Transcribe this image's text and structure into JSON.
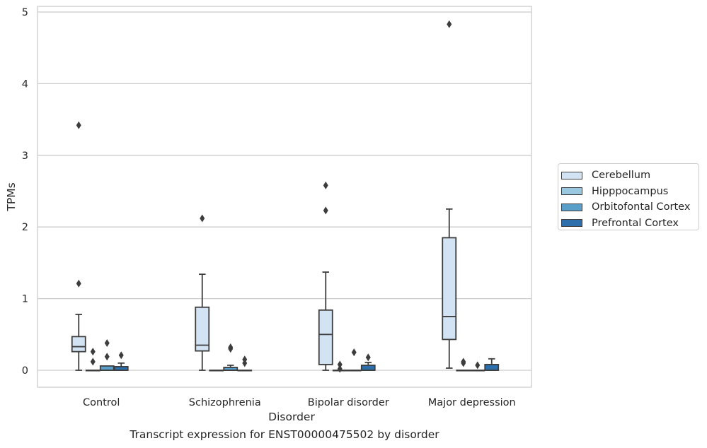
{
  "chart_data": {
    "type": "box",
    "title": "Transcript expression for ENST00000475502 by disorder",
    "xlabel": "Disorder",
    "ylabel": "TPMs",
    "ylim": [
      -0.23,
      5.08
    ],
    "yticks": [
      "0",
      "1",
      "2",
      "3",
      "4",
      "5"
    ],
    "categories": [
      "Control",
      "Schizophrenia",
      "Bipolar disorder",
      "Major depression"
    ],
    "grid": "horizontal",
    "legend_position": "right",
    "series": [
      {
        "name": "Cerebellum",
        "color": "#d2e3f3",
        "boxes": [
          {
            "q1": 0.26,
            "median": 0.33,
            "q3": 0.47,
            "whisker_low": 0.0,
            "whisker_high": 0.78,
            "outliers": [
              3.42,
              1.21
            ]
          },
          {
            "q1": 0.27,
            "median": 0.35,
            "q3": 0.88,
            "whisker_low": 0.0,
            "whisker_high": 1.34,
            "outliers": [
              2.12
            ]
          },
          {
            "q1": 0.08,
            "median": 0.5,
            "q3": 0.84,
            "whisker_low": 0.0,
            "whisker_high": 1.37,
            "outliers": [
              2.58,
              2.23
            ]
          },
          {
            "q1": 0.43,
            "median": 0.75,
            "q3": 1.85,
            "whisker_low": 0.03,
            "whisker_high": 2.25,
            "outliers": [
              4.83
            ]
          }
        ]
      },
      {
        "name": "Hipppocampus",
        "color": "#9ac8e0",
        "boxes": [
          {
            "q1": 0.0,
            "median": 0.0,
            "q3": 0.0,
            "whisker_low": 0.0,
            "whisker_high": 0.0,
            "outliers": [
              0.26,
              0.12
            ]
          },
          {
            "q1": 0.0,
            "median": 0.0,
            "q3": 0.0,
            "whisker_low": 0.0,
            "whisker_high": 0.0,
            "outliers": []
          },
          {
            "q1": 0.0,
            "median": 0.0,
            "q3": 0.0,
            "whisker_low": 0.0,
            "whisker_high": 0.0,
            "outliers": [
              0.08,
              0.02
            ]
          },
          {
            "q1": 0.0,
            "median": 0.0,
            "q3": 0.0,
            "whisker_low": 0.0,
            "whisker_high": 0.0,
            "outliers": [
              0.12,
              0.1
            ]
          }
        ]
      },
      {
        "name": "Orbitofontal Cortex",
        "color": "#5a9fca",
        "boxes": [
          {
            "q1": 0.0,
            "median": 0.0,
            "q3": 0.06,
            "whisker_low": 0.0,
            "whisker_high": 0.06,
            "outliers": [
              0.38,
              0.19
            ]
          },
          {
            "q1": 0.0,
            "median": 0.0,
            "q3": 0.04,
            "whisker_low": 0.0,
            "whisker_high": 0.07,
            "outliers": [
              0.32,
              0.3
            ]
          },
          {
            "q1": 0.0,
            "median": 0.0,
            "q3": 0.0,
            "whisker_low": 0.0,
            "whisker_high": 0.0,
            "outliers": [
              0.25
            ]
          },
          {
            "q1": 0.0,
            "median": 0.0,
            "q3": 0.0,
            "whisker_low": 0.0,
            "whisker_high": 0.0,
            "outliers": [
              0.07
            ]
          }
        ]
      },
      {
        "name": "Prefrontal Cortex",
        "color": "#2d6fad",
        "boxes": [
          {
            "q1": 0.0,
            "median": 0.0,
            "q3": 0.05,
            "whisker_low": 0.0,
            "whisker_high": 0.1,
            "outliers": [
              0.21
            ]
          },
          {
            "q1": 0.0,
            "median": 0.0,
            "q3": 0.0,
            "whisker_low": 0.0,
            "whisker_high": 0.0,
            "outliers": [
              0.15,
              0.1
            ]
          },
          {
            "q1": 0.0,
            "median": 0.0,
            "q3": 0.07,
            "whisker_low": 0.0,
            "whisker_high": 0.11,
            "outliers": [
              0.18
            ]
          },
          {
            "q1": 0.0,
            "median": 0.0,
            "q3": 0.08,
            "whisker_low": 0.0,
            "whisker_high": 0.16,
            "outliers": []
          }
        ]
      }
    ]
  }
}
